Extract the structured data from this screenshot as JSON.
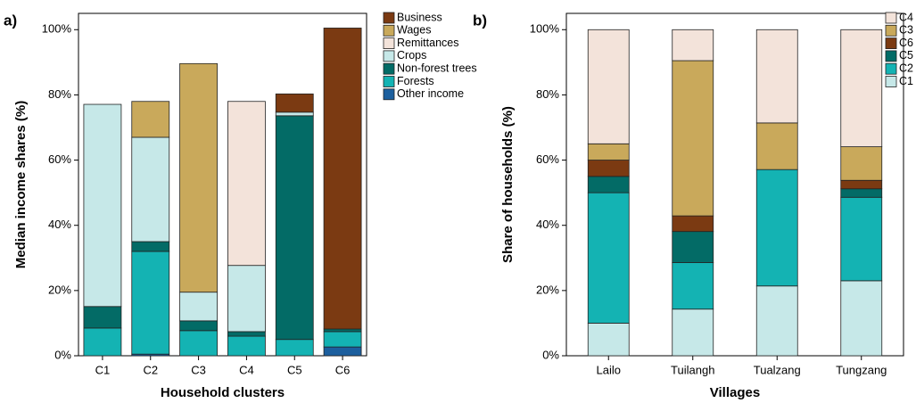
{
  "chart_data": [
    {
      "type": "stacked_bar",
      "panel_label": "a)",
      "y_label": "Median income shares (%)",
      "x_label": "Household clusters",
      "categories": [
        "C1",
        "C2",
        "C3",
        "C4",
        "C5",
        "C6"
      ],
      "ylim": [
        0,
        105
      ],
      "yticks": [
        {
          "value": 0,
          "label": "0%"
        },
        {
          "value": 20,
          "label": "20%"
        },
        {
          "value": 40,
          "label": "40%"
        },
        {
          "value": 60,
          "label": "60%"
        },
        {
          "value": 80,
          "label": "80%"
        },
        {
          "value": 100,
          "label": "100%"
        }
      ],
      "series": [
        {
          "name": "Other income",
          "color": "#1c5f9e",
          "values": [
            0,
            0.5,
            0,
            0,
            0,
            2.7
          ]
        },
        {
          "name": "Forests",
          "color": "#14b3b3",
          "values": [
            8.5,
            31.5,
            7.7,
            6,
            5,
            4.7
          ]
        },
        {
          "name": "Non-forest trees",
          "color": "#036b66",
          "values": [
            6.6,
            3,
            3,
            1.4,
            68.6,
            0.8
          ]
        },
        {
          "name": "Crops",
          "color": "#c6e8e8",
          "values": [
            62,
            32,
            8.8,
            20.3,
            1.1,
            0
          ]
        },
        {
          "name": "Remittances",
          "color": "#f3e3da",
          "values": [
            0,
            0,
            0,
            50.3,
            0,
            0
          ]
        },
        {
          "name": "Wages",
          "color": "#c9a95b",
          "values": [
            0,
            11,
            70.1,
            0,
            0,
            0
          ]
        },
        {
          "name": "Business",
          "color": "#7b3a12",
          "values": [
            0,
            0,
            0,
            0,
            5.6,
            92.3
          ]
        }
      ]
    },
    {
      "type": "stacked_bar",
      "panel_label": "b)",
      "y_label": "Share of households (%)",
      "x_label": "Villages",
      "categories": [
        "Lailo",
        "Tuilangh",
        "Tualzang",
        "Tungzang"
      ],
      "ylim": [
        0,
        105
      ],
      "yticks": [
        {
          "value": 0,
          "label": "0%"
        },
        {
          "value": 20,
          "label": "20%"
        },
        {
          "value": 40,
          "label": "40%"
        },
        {
          "value": 60,
          "label": "60%"
        },
        {
          "value": 80,
          "label": "80%"
        },
        {
          "value": 100,
          "label": "100%"
        }
      ],
      "series": [
        {
          "name": "C1",
          "color": "#c6e8e8",
          "values": [
            10,
            14.3,
            21.4,
            23
          ]
        },
        {
          "name": "C2",
          "color": "#14b3b3",
          "values": [
            40,
            14.3,
            35.7,
            25.6
          ]
        },
        {
          "name": "C5",
          "color": "#036b66",
          "values": [
            5,
            9.5,
            0,
            2.6
          ]
        },
        {
          "name": "C6",
          "color": "#7b3a12",
          "values": [
            5,
            4.8,
            0,
            2.6
          ]
        },
        {
          "name": "C3",
          "color": "#c9a95b",
          "values": [
            5,
            47.6,
            14.3,
            10.3
          ]
        },
        {
          "name": "C4",
          "color": "#f3e3da",
          "values": [
            35,
            9.5,
            28.6,
            35.9
          ]
        }
      ]
    }
  ]
}
